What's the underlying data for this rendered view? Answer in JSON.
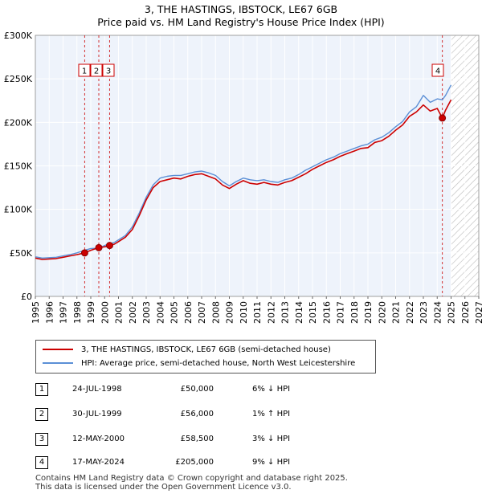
{
  "title_line1": "3, THE HASTINGS, IBSTOCK, LE67 6GB",
  "title_line2": "Price paid vs. HM Land Registry's House Price Index (HPI)",
  "chart_data": {
    "type": "line",
    "title": "Price paid vs. HM Land Registry's House Price Index (HPI)",
    "xlabel": "",
    "ylabel": "",
    "xlim": [
      1995,
      2027
    ],
    "ylim": [
      0,
      300000
    ],
    "grid": true,
    "xticks": [
      "1995",
      "1996",
      "1997",
      "1998",
      "1999",
      "2000",
      "2001",
      "2002",
      "2003",
      "2004",
      "2005",
      "2006",
      "2007",
      "2008",
      "2009",
      "2010",
      "2011",
      "2012",
      "2013",
      "2014",
      "2015",
      "2016",
      "2017",
      "2018",
      "2019",
      "2020",
      "2021",
      "2022",
      "2023",
      "2024",
      "2025",
      "2026",
      "2027"
    ],
    "yticks": [
      {
        "value": 0,
        "label": "£0"
      },
      {
        "value": 50000,
        "label": "£50K"
      },
      {
        "value": 100000,
        "label": "£100K"
      },
      {
        "value": 150000,
        "label": "£150K"
      },
      {
        "value": 200000,
        "label": "£200K"
      },
      {
        "value": 250000,
        "label": "£250K"
      },
      {
        "value": 300000,
        "label": "£300K"
      }
    ],
    "forecast_start": 2025.0,
    "series": [
      {
        "name": "3, THE HASTINGS, IBSTOCK, LE67 6GB (semi-detached house)",
        "color": "#cc0000",
        "x": [
          1995.0,
          1995.5,
          1996.0,
          1996.5,
          1997.0,
          1997.5,
          1998.0,
          1998.56,
          1999.0,
          1999.58,
          2000.0,
          2000.36,
          2000.7,
          2001.0,
          2001.5,
          2002.0,
          2002.5,
          2003.0,
          2003.5,
          2004.0,
          2004.5,
          2005.0,
          2005.5,
          2006.0,
          2006.5,
          2007.0,
          2007.5,
          2008.0,
          2008.5,
          2009.0,
          2009.5,
          2010.0,
          2010.5,
          2011.0,
          2011.5,
          2012.0,
          2012.5,
          2013.0,
          2013.5,
          2014.0,
          2014.5,
          2015.0,
          2015.5,
          2016.0,
          2016.5,
          2017.0,
          2017.5,
          2018.0,
          2018.5,
          2019.0,
          2019.5,
          2020.0,
          2020.5,
          2021.0,
          2021.5,
          2022.0,
          2022.5,
          2023.0,
          2023.5,
          2024.0,
          2024.37,
          2024.6,
          2025.0
        ],
        "y": [
          44000,
          42500,
          43000,
          43500,
          45000,
          46500,
          48000,
          50000,
          53000,
          56000,
          57000,
          58500,
          60000,
          63000,
          68000,
          77000,
          93000,
          111000,
          125000,
          132000,
          134000,
          136000,
          135000,
          138000,
          140000,
          141000,
          138000,
          135000,
          128000,
          124000,
          129000,
          133000,
          130000,
          129000,
          131000,
          129000,
          128000,
          131000,
          133000,
          137000,
          141000,
          146000,
          150000,
          154000,
          157000,
          161000,
          164000,
          167000,
          170000,
          171000,
          177000,
          179000,
          184000,
          191000,
          197000,
          207000,
          212000,
          220000,
          213000,
          216000,
          205000,
          214000,
          226000
        ]
      },
      {
        "name": "HPI: Average price, semi-detached house, North West Leicestershire",
        "color": "#5b8fd6",
        "x": [
          1995.0,
          1995.5,
          1996.0,
          1996.5,
          1997.0,
          1997.5,
          1998.0,
          1998.56,
          1999.0,
          1999.58,
          2000.0,
          2000.36,
          2000.7,
          2001.0,
          2001.5,
          2002.0,
          2002.5,
          2003.0,
          2003.5,
          2004.0,
          2004.5,
          2005.0,
          2005.5,
          2006.0,
          2006.5,
          2007.0,
          2007.5,
          2008.0,
          2008.5,
          2009.0,
          2009.5,
          2010.0,
          2010.5,
          2011.0,
          2011.5,
          2012.0,
          2012.5,
          2013.0,
          2013.5,
          2014.0,
          2014.5,
          2015.0,
          2015.5,
          2016.0,
          2016.5,
          2017.0,
          2017.5,
          2018.0,
          2018.5,
          2019.0,
          2019.5,
          2020.0,
          2020.5,
          2021.0,
          2021.5,
          2022.0,
          2022.5,
          2023.0,
          2023.5,
          2024.0,
          2024.37,
          2024.6,
          2025.0
        ],
        "y": [
          45500,
          44000,
          44500,
          45000,
          46500,
          48000,
          50000,
          53000,
          55000,
          55500,
          58500,
          60500,
          62000,
          65000,
          70000,
          80000,
          96000,
          114000,
          128000,
          136000,
          138000,
          139000,
          139000,
          141000,
          143000,
          144000,
          142000,
          139000,
          132000,
          127000,
          132000,
          136000,
          134000,
          133000,
          134000,
          132000,
          131000,
          134000,
          136000,
          140000,
          145000,
          149000,
          153000,
          157000,
          160000,
          164000,
          167000,
          170000,
          173000,
          175000,
          180000,
          183000,
          188000,
          195000,
          201000,
          212000,
          218000,
          231000,
          223000,
          227000,
          226000,
          231000,
          243000
        ]
      }
    ],
    "markers": [
      {
        "num": "1",
        "x": 1998.56,
        "y": 50000
      },
      {
        "num": "2",
        "x": 1999.58,
        "y": 56000
      },
      {
        "num": "3",
        "x": 2000.36,
        "y": 58500
      },
      {
        "num": "4",
        "x": 2024.37,
        "y": 205000
      }
    ]
  },
  "legend": [
    {
      "label": "3, THE HASTINGS, IBSTOCK, LE67 6GB (semi-detached house)",
      "color": "#cc0000"
    },
    {
      "label": "HPI: Average price, semi-detached house, North West Leicestershire",
      "color": "#5b8fd6"
    }
  ],
  "transactions": [
    {
      "num": "1",
      "date": "24-JUL-1998",
      "price": "£50,000",
      "hpi": "6% ↓ HPI"
    },
    {
      "num": "2",
      "date": "30-JUL-1999",
      "price": "£56,000",
      "hpi": "1% ↑ HPI"
    },
    {
      "num": "3",
      "date": "12-MAY-2000",
      "price": "£58,500",
      "hpi": "3% ↓ HPI"
    },
    {
      "num": "4",
      "date": "17-MAY-2024",
      "price": "£205,000",
      "hpi": "9% ↓ HPI"
    }
  ],
  "footer_line1": "Contains HM Land Registry data © Crown copyright and database right 2025.",
  "footer_line2": "This data is licensed under the Open Government Licence v3.0."
}
